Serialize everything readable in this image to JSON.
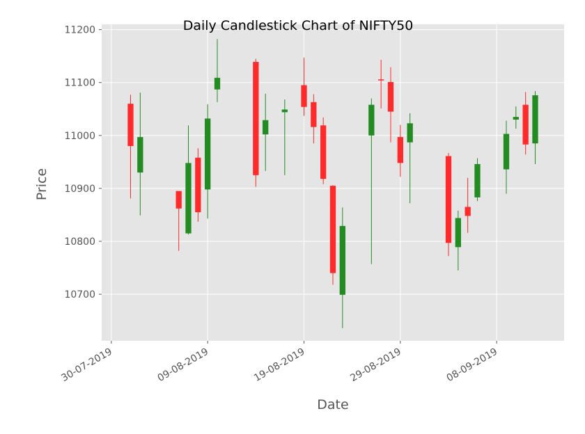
{
  "chart_data": {
    "type": "candlestick",
    "title": "Daily Candlestick Chart of NIFTY50",
    "xlabel": "Date",
    "ylabel": "Price",
    "x_type": "date",
    "x_ticks": [
      "2019-07-30",
      "2019-08-09",
      "2019-08-19",
      "2019-08-29",
      "2019-09-08"
    ],
    "x_tick_labels": [
      "30-07-2019",
      "09-08-2019",
      "19-08-2019",
      "29-08-2019",
      "08-09-2019"
    ],
    "xlim": [
      "2019-07-29",
      "2019-09-15"
    ],
    "ylim": [
      10612,
      11210
    ],
    "y_ticks": [
      10700,
      10800,
      10900,
      11000,
      11100,
      11200
    ],
    "y_tick_labels": [
      "10700",
      "10800",
      "10900",
      "11000",
      "11100",
      "11200"
    ],
    "grid": true,
    "legend": "none",
    "colors": {
      "up": "#228B22",
      "down": "#FF2A2A",
      "background": "#E5E5E5",
      "grid": "#FFFFFF"
    },
    "candles": [
      {
        "date": "2019-08-01",
        "open": 11060,
        "high": 11077,
        "low": 10881,
        "close": 10980
      },
      {
        "date": "2019-08-02",
        "open": 10930,
        "high": 11081,
        "low": 10849,
        "close": 10997
      },
      {
        "date": "2019-08-06",
        "open": 10895,
        "high": 10895,
        "low": 10782,
        "close": 10862
      },
      {
        "date": "2019-08-07",
        "open": 10815,
        "high": 11019,
        "low": 10813,
        "close": 10948
      },
      {
        "date": "2019-08-08",
        "open": 10958,
        "high": 10976,
        "low": 10837,
        "close": 10855
      },
      {
        "date": "2019-08-09",
        "open": 10898,
        "high": 11059,
        "low": 10843,
        "close": 11032
      },
      {
        "date": "2019-08-10",
        "open": 11087,
        "high": 11182,
        "low": 11063,
        "close": 11109
      },
      {
        "date": "2019-08-14",
        "open": 11139,
        "high": 11145,
        "low": 10903,
        "close": 10925
      },
      {
        "date": "2019-08-15",
        "open": 11002,
        "high": 11079,
        "low": 10933,
        "close": 11029
      },
      {
        "date": "2019-08-17",
        "open": 11044,
        "high": 11068,
        "low": 10925,
        "close": 11049
      },
      {
        "date": "2019-08-19",
        "open": 11095,
        "high": 11147,
        "low": 11037,
        "close": 11054
      },
      {
        "date": "2019-08-20",
        "open": 11063,
        "high": 11078,
        "low": 10985,
        "close": 11016
      },
      {
        "date": "2019-08-21",
        "open": 11019,
        "high": 11034,
        "low": 10908,
        "close": 10918
      },
      {
        "date": "2019-08-22",
        "open": 10905,
        "high": 10906,
        "low": 10718,
        "close": 10740
      },
      {
        "date": "2019-08-23",
        "open": 10699,
        "high": 10864,
        "low": 10636,
        "close": 10829
      },
      {
        "date": "2019-08-26",
        "open": 11000,
        "high": 11070,
        "low": 10757,
        "close": 11058
      },
      {
        "date": "2019-08-27",
        "open": 11106,
        "high": 11143,
        "low": 11051,
        "close": 11104
      },
      {
        "date": "2019-08-28",
        "open": 11101,
        "high": 11129,
        "low": 10987,
        "close": 11045
      },
      {
        "date": "2019-08-29",
        "open": 10997,
        "high": 11020,
        "low": 10922,
        "close": 10948
      },
      {
        "date": "2019-08-30",
        "open": 10987,
        "high": 11042,
        "low": 10872,
        "close": 11023
      },
      {
        "date": "2019-09-03",
        "open": 10961,
        "high": 10967,
        "low": 10772,
        "close": 10797
      },
      {
        "date": "2019-09-04",
        "open": 10789,
        "high": 10858,
        "low": 10745,
        "close": 10844
      },
      {
        "date": "2019-09-05",
        "open": 10865,
        "high": 10920,
        "low": 10816,
        "close": 10848
      },
      {
        "date": "2019-09-06",
        "open": 10883,
        "high": 10957,
        "low": 10876,
        "close": 10946
      },
      {
        "date": "2019-09-09",
        "open": 10936,
        "high": 11028,
        "low": 10890,
        "close": 11003
      },
      {
        "date": "2019-09-10",
        "open": 11030,
        "high": 11055,
        "low": 11013,
        "close": 11035
      },
      {
        "date": "2019-09-11",
        "open": 11058,
        "high": 11082,
        "low": 10964,
        "close": 10983
      },
      {
        "date": "2019-09-12",
        "open": 10985,
        "high": 11084,
        "low": 10946,
        "close": 11076
      }
    ]
  }
}
